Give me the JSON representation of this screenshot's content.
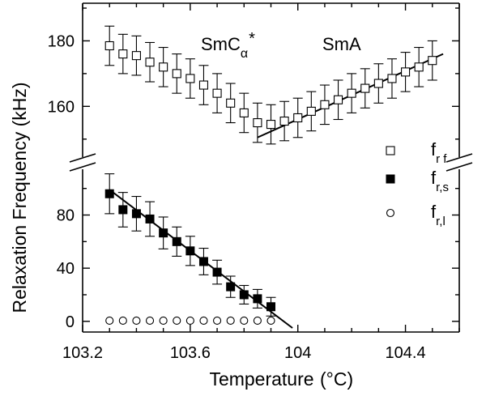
{
  "chart_data": {
    "type": "scatter",
    "xlabel": "Temperature",
    "xunit": "(°C)",
    "ylabel": "Relaxation Frequency (kHz)",
    "xlim": [
      103.2,
      104.6
    ],
    "x_ticks": [
      "103.2",
      "103.6",
      "104",
      "104.4"
    ],
    "y_broken_axis": true,
    "ylim_lower": [
      -5,
      112
    ],
    "ylim_upper": [
      145,
      190
    ],
    "y_ticks_lower": [
      "0",
      "40",
      "80"
    ],
    "y_ticks_upper": [
      "160",
      "180"
    ],
    "phase_labels": [
      {
        "base": "SmC",
        "sub": "α",
        "sup": "*"
      },
      {
        "base": "SmA",
        "sub": "",
        "sup": ""
      }
    ],
    "legend": [
      {
        "base": "f",
        "sub": "r f",
        "marker": "open-square"
      },
      {
        "base": "f",
        "sub": "r,s",
        "marker": "filled-square"
      },
      {
        "base": "f",
        "sub": "r,l",
        "marker": "open-circle"
      }
    ],
    "series": [
      {
        "legend_index": 0,
        "marker": "open-square",
        "panel": "upper",
        "points": [
          {
            "x": 103.3,
            "y": 178.5,
            "err": 6.0
          },
          {
            "x": 103.35,
            "y": 176.0,
            "err": 6.0
          },
          {
            "x": 103.4,
            "y": 175.5,
            "err": 6.0
          },
          {
            "x": 103.45,
            "y": 173.5,
            "err": 6.0
          },
          {
            "x": 103.5,
            "y": 172.0,
            "err": 6.0
          },
          {
            "x": 103.55,
            "y": 170.0,
            "err": 6.0
          },
          {
            "x": 103.6,
            "y": 168.5,
            "err": 6.0
          },
          {
            "x": 103.65,
            "y": 166.5,
            "err": 6.0
          },
          {
            "x": 103.7,
            "y": 164.0,
            "err": 6.0
          },
          {
            "x": 103.75,
            "y": 161.0,
            "err": 6.0
          },
          {
            "x": 103.8,
            "y": 158.0,
            "err": 6.0
          },
          {
            "x": 103.85,
            "y": 155.0,
            "err": 6.0
          },
          {
            "x": 103.9,
            "y": 154.5,
            "err": 6.0
          },
          {
            "x": 103.95,
            "y": 155.5,
            "err": 6.0
          },
          {
            "x": 104.0,
            "y": 156.5,
            "err": 6.0
          },
          {
            "x": 104.05,
            "y": 158.5,
            "err": 6.0
          },
          {
            "x": 104.1,
            "y": 160.5,
            "err": 6.0
          },
          {
            "x": 104.15,
            "y": 162.0,
            "err": 6.0
          },
          {
            "x": 104.2,
            "y": 164.0,
            "err": 6.0
          },
          {
            "x": 104.25,
            "y": 165.5,
            "err": 6.0
          },
          {
            "x": 104.3,
            "y": 167.0,
            "err": 6.0
          },
          {
            "x": 104.35,
            "y": 168.5,
            "err": 6.0
          },
          {
            "x": 104.4,
            "y": 170.5,
            "err": 6.0
          },
          {
            "x": 104.45,
            "y": 172.0,
            "err": 6.0
          },
          {
            "x": 104.5,
            "y": 174.0,
            "err": 6.0
          }
        ]
      },
      {
        "legend_index": 1,
        "marker": "filled-square",
        "panel": "lower",
        "points": [
          {
            "x": 103.3,
            "y": 96.0,
            "err": 15.0
          },
          {
            "x": 103.35,
            "y": 84.0,
            "err": 13.0
          },
          {
            "x": 103.4,
            "y": 81.0,
            "err": 13.0
          },
          {
            "x": 103.45,
            "y": 77.0,
            "err": 13.0
          },
          {
            "x": 103.5,
            "y": 66.5,
            "err": 12.0
          },
          {
            "x": 103.55,
            "y": 60.0,
            "err": 11.0
          },
          {
            "x": 103.6,
            "y": 53.0,
            "err": 11.0
          },
          {
            "x": 103.65,
            "y": 45.0,
            "err": 10.0
          },
          {
            "x": 103.7,
            "y": 37.0,
            "err": 9.0
          },
          {
            "x": 103.75,
            "y": 26.0,
            "err": 8.0
          },
          {
            "x": 103.8,
            "y": 20.0,
            "err": 7.0
          },
          {
            "x": 103.85,
            "y": 17.0,
            "err": 7.0
          },
          {
            "x": 103.9,
            "y": 11.0,
            "err": 7.0
          }
        ]
      },
      {
        "legend_index": 2,
        "marker": "open-circle",
        "panel": "lower",
        "points": [
          {
            "x": 103.3,
            "y": 0.5
          },
          {
            "x": 103.35,
            "y": 0.5
          },
          {
            "x": 103.4,
            "y": 0.5
          },
          {
            "x": 103.45,
            "y": 0.5
          },
          {
            "x": 103.5,
            "y": 0.5
          },
          {
            "x": 103.55,
            "y": 0.5
          },
          {
            "x": 103.6,
            "y": 0.5
          },
          {
            "x": 103.65,
            "y": 0.5
          },
          {
            "x": 103.7,
            "y": 0.5
          },
          {
            "x": 103.75,
            "y": 0.5
          },
          {
            "x": 103.8,
            "y": 0.5
          },
          {
            "x": 103.85,
            "y": 0.5
          },
          {
            "x": 103.9,
            "y": 0.5
          }
        ]
      }
    ],
    "fit_lines": [
      {
        "panel": "lower",
        "x": [
          103.3,
          103.98
        ],
        "y": [
          99.0,
          -5.0
        ]
      },
      {
        "panel": "upper",
        "x": [
          103.85,
          104.54
        ],
        "y": [
          150.5,
          176.0
        ]
      }
    ]
  }
}
